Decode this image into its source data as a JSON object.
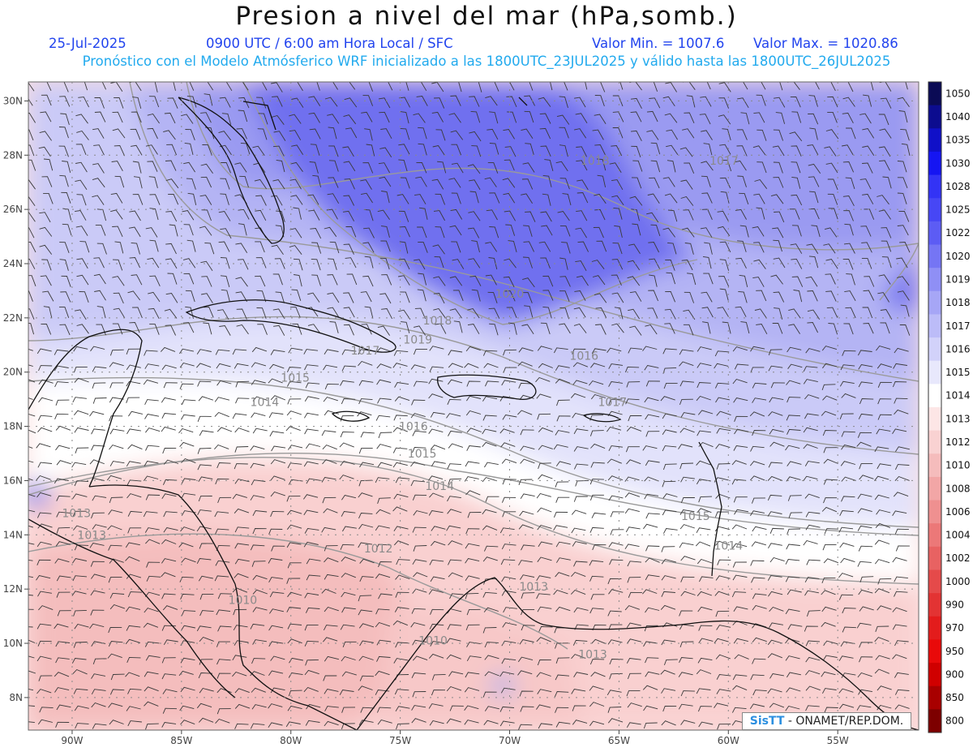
{
  "title": "Presion a nivel del mar (hPa,somb.)",
  "header": {
    "date": "25-Jul-2025",
    "time_info": "0900 UTC / 6:00 am Hora Local / SFC",
    "min_label": "Valor Min. = 1007.6",
    "max_label": "Valor Max. = 1020.86",
    "model_info": "Pronóstico con el Modelo Atmósferico WRF inicializado a las 1800UTC_23JUL2025 y válido hasta las  1800UTC_26JUL2025"
  },
  "map": {
    "lon_range": [
      -92,
      -51.3
    ],
    "lat_range": [
      6.8,
      30.7
    ],
    "lon_ticks": [
      {
        "value": -90,
        "label": "90W"
      },
      {
        "value": -85,
        "label": "85W"
      },
      {
        "value": -80,
        "label": "80W"
      },
      {
        "value": -75,
        "label": "75W"
      },
      {
        "value": -70,
        "label": "70W"
      },
      {
        "value": -65,
        "label": "65W"
      },
      {
        "value": -60,
        "label": "60W"
      },
      {
        "value": -55,
        "label": "55W"
      }
    ],
    "lat_ticks": [
      {
        "value": 8,
        "label": "8N"
      },
      {
        "value": 10,
        "label": "10N"
      },
      {
        "value": 12,
        "label": "12N"
      },
      {
        "value": 14,
        "label": "14N"
      },
      {
        "value": 16,
        "label": "16N"
      },
      {
        "value": 18,
        "label": "18N"
      },
      {
        "value": 20,
        "label": "20N"
      },
      {
        "value": 22,
        "label": "22N"
      },
      {
        "value": 24,
        "label": "24N"
      },
      {
        "value": 26,
        "label": "26N"
      },
      {
        "value": 28,
        "label": "28N"
      },
      {
        "value": 30,
        "label": "30N"
      }
    ],
    "contour_labels": [
      {
        "text": "1018",
        "lon": -66.1,
        "lat": 27.8
      },
      {
        "text": "1017",
        "lon": -60.2,
        "lat": 27.8
      },
      {
        "text": "1020",
        "lon": -70.0,
        "lat": 22.9
      },
      {
        "text": "1018",
        "lon": -73.3,
        "lat": 21.9
      },
      {
        "text": "1019",
        "lon": -74.2,
        "lat": 21.2
      },
      {
        "text": "1017",
        "lon": -76.6,
        "lat": 20.8
      },
      {
        "text": "1016",
        "lon": -66.6,
        "lat": 20.6
      },
      {
        "text": "1015",
        "lon": -79.8,
        "lat": 19.8
      },
      {
        "text": "1014",
        "lon": -81.2,
        "lat": 18.9
      },
      {
        "text": "1017",
        "lon": -65.3,
        "lat": 18.9
      },
      {
        "text": "1016",
        "lon": -74.4,
        "lat": 18.0
      },
      {
        "text": "1015",
        "lon": -74.0,
        "lat": 17.0
      },
      {
        "text": "1014",
        "lon": -73.2,
        "lat": 15.8
      },
      {
        "text": "1015",
        "lon": -61.5,
        "lat": 14.7
      },
      {
        "text": "1014",
        "lon": -60.0,
        "lat": 13.6
      },
      {
        "text": "1013",
        "lon": -89.8,
        "lat": 14.8
      },
      {
        "text": "1013",
        "lon": -89.1,
        "lat": 14.0
      },
      {
        "text": "1012",
        "lon": -76.0,
        "lat": 13.5
      },
      {
        "text": "1013",
        "lon": -68.9,
        "lat": 12.1
      },
      {
        "text": "1010",
        "lon": -82.2,
        "lat": 11.6
      },
      {
        "text": "1010",
        "lon": -73.5,
        "lat": 10.1
      },
      {
        "text": "1013",
        "lon": -66.2,
        "lat": 9.6
      }
    ]
  },
  "colorbar": {
    "levels": [
      {
        "label": "1050",
        "color": "#0b0b55"
      },
      {
        "label": "1040",
        "color": "#0c0c8f"
      },
      {
        "label": "1035",
        "color": "#1010c8"
      },
      {
        "label": "1030",
        "color": "#1515f2"
      },
      {
        "label": "1028",
        "color": "#3333f5"
      },
      {
        "label": "1025",
        "color": "#4747f5"
      },
      {
        "label": "1022",
        "color": "#5c5cf4"
      },
      {
        "label": "1020",
        "color": "#7575f4"
      },
      {
        "label": "1019",
        "color": "#8f8ff5"
      },
      {
        "label": "1018",
        "color": "#a6a6f6"
      },
      {
        "label": "1017",
        "color": "#bcbcf8"
      },
      {
        "label": "1016",
        "color": "#d2d2fa"
      },
      {
        "label": "1015",
        "color": "#e8e8fc"
      },
      {
        "label": "1014",
        "color": "#ffffff"
      },
      {
        "label": "1013",
        "color": "#fde6e6"
      },
      {
        "label": "1012",
        "color": "#f9d2d2"
      },
      {
        "label": "1010",
        "color": "#f5bcbc"
      },
      {
        "label": "1008",
        "color": "#f2a6a6"
      },
      {
        "label": "1006",
        "color": "#ef9090"
      },
      {
        "label": "1004",
        "color": "#ec7878"
      },
      {
        "label": "1002",
        "color": "#e86262"
      },
      {
        "label": "1000",
        "color": "#e54a4a"
      },
      {
        "label": "990",
        "color": "#e33333"
      },
      {
        "label": "970",
        "color": "#e31c1c"
      },
      {
        "label": "950",
        "color": "#e90a0a"
      },
      {
        "label": "900",
        "color": "#d00000"
      },
      {
        "label": "850",
        "color": "#a80000"
      },
      {
        "label": "800",
        "color": "#7d0000"
      }
    ]
  },
  "credit": {
    "brand": "SisTT",
    "text": " - ONAMET/REP.DOM."
  }
}
